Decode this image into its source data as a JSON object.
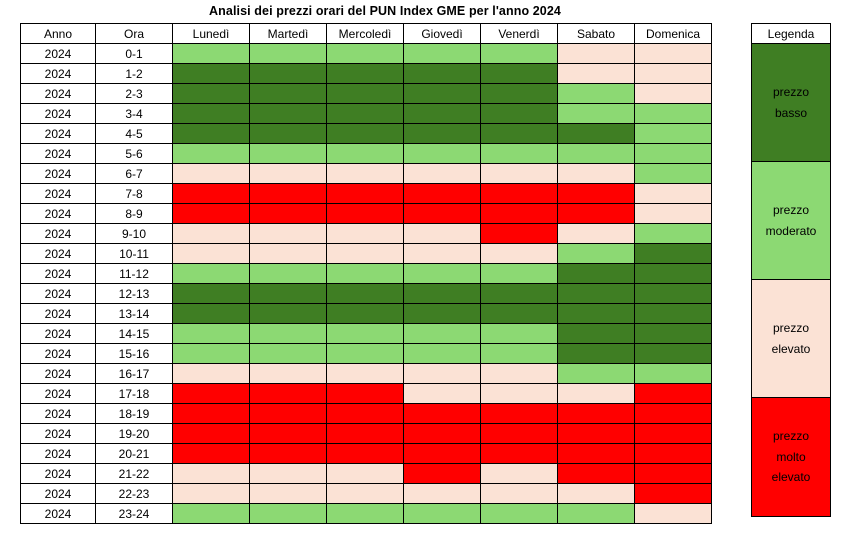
{
  "title": "Analisi dei prezzi orari del PUN Index GME per l'anno 2024",
  "table": {
    "columns": [
      "Anno",
      "Ora",
      "Lunedì",
      "Martedì",
      "Mercoledì",
      "Giovedì",
      "Venerdì",
      "Sabato",
      "Domenica"
    ],
    "anno": "2024"
  },
  "colors": {
    "basso": "#3F7E23",
    "moderato": "#8CD973",
    "elevato": "#FBE2D5",
    "molto_elevato": "#FF0000"
  },
  "legend": {
    "header": "Legenda",
    "items": [
      {
        "label": "prezzo basso",
        "level": "basso"
      },
      {
        "label": "prezzo moderato",
        "level": "moderato"
      },
      {
        "label": "prezzo elevato",
        "level": "elevato"
      },
      {
        "label": "prezzo molto elevato",
        "level": "molto_elevato"
      }
    ]
  },
  "chart_data": {
    "type": "heatmap",
    "title": "Analisi dei prezzi orari del PUN Index GME per l'anno 2024",
    "x_labels": [
      "Lunedì",
      "Martedì",
      "Mercoledì",
      "Giovedì",
      "Venerdì",
      "Sabato",
      "Domenica"
    ],
    "y_labels": [
      "0-1",
      "1-2",
      "2-3",
      "3-4",
      "4-5",
      "5-6",
      "6-7",
      "7-8",
      "8-9",
      "9-10",
      "10-11",
      "11-12",
      "12-13",
      "13-14",
      "14-15",
      "15-16",
      "16-17",
      "17-18",
      "18-19",
      "19-20",
      "20-21",
      "21-22",
      "22-23",
      "23-24"
    ],
    "categories_legend": {
      "basso": "prezzo basso",
      "moderato": "prezzo moderato",
      "elevato": "prezzo elevato",
      "molto_elevato": "prezzo molto elevato"
    },
    "values": [
      [
        "moderato",
        "moderato",
        "moderato",
        "moderato",
        "moderato",
        "elevato",
        "elevato"
      ],
      [
        "basso",
        "basso",
        "basso",
        "basso",
        "basso",
        "elevato",
        "elevato"
      ],
      [
        "basso",
        "basso",
        "basso",
        "basso",
        "basso",
        "moderato",
        "elevato"
      ],
      [
        "basso",
        "basso",
        "basso",
        "basso",
        "basso",
        "moderato",
        "moderato"
      ],
      [
        "basso",
        "basso",
        "basso",
        "basso",
        "basso",
        "basso",
        "moderato"
      ],
      [
        "moderato",
        "moderato",
        "moderato",
        "moderato",
        "moderato",
        "moderato",
        "moderato"
      ],
      [
        "elevato",
        "elevato",
        "elevato",
        "elevato",
        "elevato",
        "elevato",
        "moderato"
      ],
      [
        "molto_elevato",
        "molto_elevato",
        "molto_elevato",
        "molto_elevato",
        "molto_elevato",
        "molto_elevato",
        "elevato"
      ],
      [
        "molto_elevato",
        "molto_elevato",
        "molto_elevato",
        "molto_elevato",
        "molto_elevato",
        "molto_elevato",
        "elevato"
      ],
      [
        "elevato",
        "elevato",
        "elevato",
        "elevato",
        "molto_elevato",
        "elevato",
        "moderato"
      ],
      [
        "elevato",
        "elevato",
        "elevato",
        "elevato",
        "elevato",
        "moderato",
        "basso"
      ],
      [
        "moderato",
        "moderato",
        "moderato",
        "moderato",
        "moderato",
        "basso",
        "basso"
      ],
      [
        "basso",
        "basso",
        "basso",
        "basso",
        "basso",
        "basso",
        "basso"
      ],
      [
        "basso",
        "basso",
        "basso",
        "basso",
        "basso",
        "basso",
        "basso"
      ],
      [
        "moderato",
        "moderato",
        "moderato",
        "moderato",
        "moderato",
        "basso",
        "basso"
      ],
      [
        "moderato",
        "moderato",
        "moderato",
        "moderato",
        "moderato",
        "basso",
        "basso"
      ],
      [
        "elevato",
        "elevato",
        "elevato",
        "elevato",
        "elevato",
        "moderato",
        "moderato"
      ],
      [
        "molto_elevato",
        "molto_elevato",
        "molto_elevato",
        "elevato",
        "elevato",
        "elevato",
        "molto_elevato"
      ],
      [
        "molto_elevato",
        "molto_elevato",
        "molto_elevato",
        "molto_elevato",
        "molto_elevato",
        "molto_elevato",
        "molto_elevato"
      ],
      [
        "molto_elevato",
        "molto_elevato",
        "molto_elevato",
        "molto_elevato",
        "molto_elevato",
        "molto_elevato",
        "molto_elevato"
      ],
      [
        "molto_elevato",
        "molto_elevato",
        "molto_elevato",
        "molto_elevato",
        "molto_elevato",
        "molto_elevato",
        "molto_elevato"
      ],
      [
        "elevato",
        "elevato",
        "elevato",
        "molto_elevato",
        "elevato",
        "molto_elevato",
        "molto_elevato"
      ],
      [
        "elevato",
        "elevato",
        "elevato",
        "elevato",
        "elevato",
        "elevato",
        "molto_elevato"
      ],
      [
        "moderato",
        "moderato",
        "moderato",
        "moderato",
        "moderato",
        "moderato",
        "elevato"
      ]
    ]
  }
}
